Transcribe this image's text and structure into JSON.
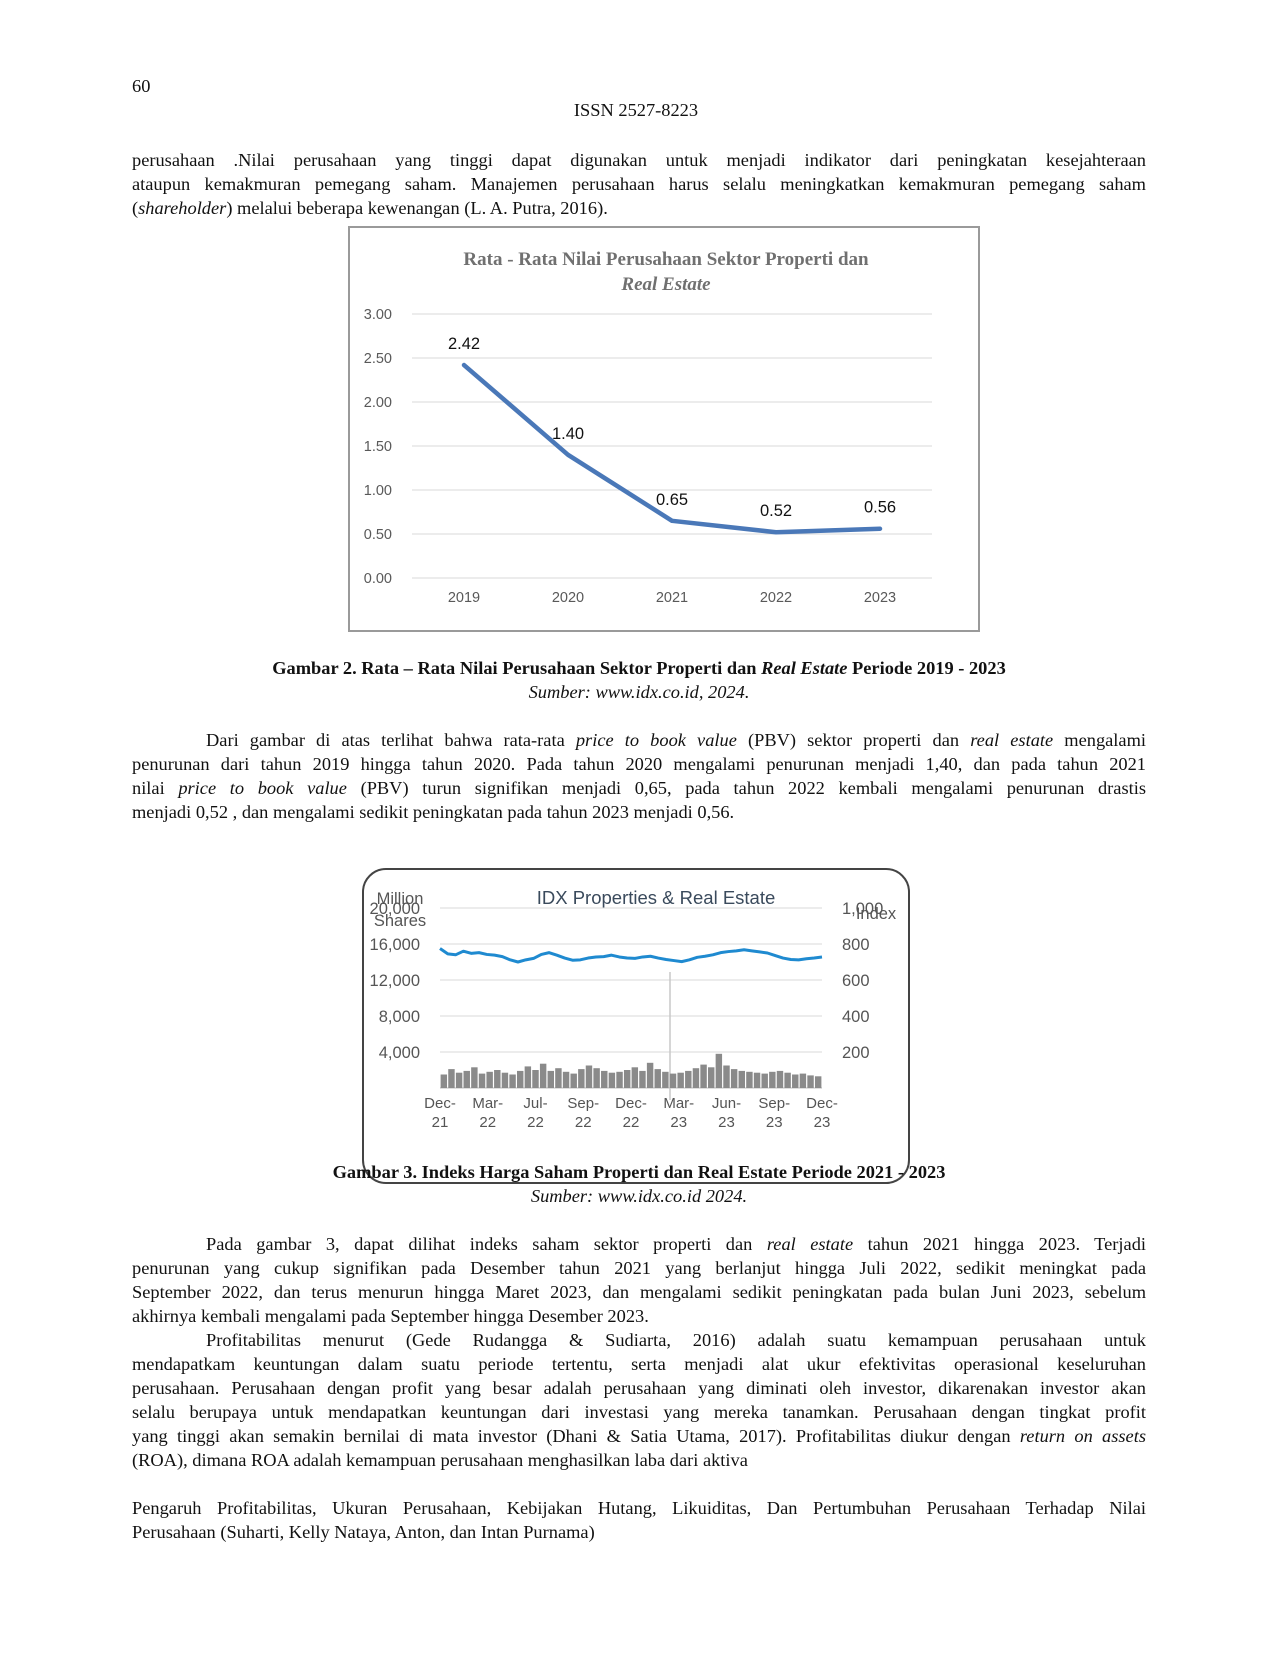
{
  "header": {
    "page_number": "60",
    "issn": "ISSN 2527-8223"
  },
  "intro_paragraph": {
    "line1": "perusahaan .Nilai perusahaan yang tinggi dapat digunakan untuk menjadi indikator dari peningkatan kesejahteraan",
    "line2": "ataupun kemakmuran pemegang saham. Manajemen perusahaan harus selalu meningkatkan kemakmuran pemegang saham",
    "line3_open": "(",
    "line3_italic": "shareholder",
    "line3_rest": ") melalui beberapa kewenangan (L. A. Putra, 2016)."
  },
  "figure2": {
    "caption_bold_1": "Gambar 2. Rata – Rata Nilai Perusahaan Sektor Properti dan ",
    "caption_bold_italic": "Real Estate",
    "caption_bold_2": " Periode 2019 - 2023",
    "source": "Sumber: www.idx.co.id, 2024."
  },
  "chart_data": [
    {
      "type": "line",
      "title_line1": "Rata - Rata Nilai Perusahaan Sektor Properti dan",
      "title_line2": "Real Estate",
      "categories": [
        "2019",
        "2020",
        "2021",
        "2022",
        "2023"
      ],
      "values": [
        2.42,
        1.4,
        0.65,
        0.52,
        0.56
      ],
      "data_labels": [
        "2.42",
        "1.40",
        "0.65",
        "0.52",
        "0.56"
      ],
      "y_ticks": [
        "0.00",
        "0.50",
        "1.00",
        "1.50",
        "2.00",
        "2.50",
        "3.00"
      ],
      "ylim": [
        0,
        3
      ],
      "grid": true,
      "color": "#4a78b8"
    },
    {
      "type": "line",
      "title": "IDX Properties & Real Estate",
      "left_axis_label_1": "Million",
      "left_axis_label_2": "Shares",
      "right_axis_label": "Index",
      "left_ticks": [
        "20,000",
        "16,000",
        "12,000",
        "8,000",
        "4,000"
      ],
      "right_ticks": [
        "1,000",
        "800",
        "600",
        "400",
        "200"
      ],
      "x_ticks": [
        [
          "Dec-",
          "21"
        ],
        [
          "Mar-",
          "22"
        ],
        [
          "Jul-",
          "22"
        ],
        [
          "Sep-",
          "22"
        ],
        [
          "Dec-",
          "22"
        ],
        [
          "Mar-",
          "23"
        ],
        [
          "Jun-",
          "23"
        ],
        [
          "Sep-",
          "23"
        ],
        [
          "Dec-",
          "23"
        ]
      ],
      "index_ylim": [
        0,
        1000
      ],
      "volume_ylim": [
        0,
        20000
      ],
      "index_series": [
        775,
        745,
        740,
        760,
        748,
        752,
        742,
        738,
        730,
        712,
        700,
        712,
        720,
        742,
        752,
        738,
        722,
        710,
        712,
        722,
        728,
        730,
        738,
        728,
        722,
        720,
        728,
        732,
        722,
        714,
        708,
        702,
        712,
        726,
        732,
        740,
        752,
        758,
        762,
        768,
        762,
        756,
        750,
        736,
        722,
        714,
        712,
        718,
        722,
        728
      ],
      "volume_series": [
        1500,
        2100,
        1700,
        1900,
        2300,
        1600,
        1800,
        2000,
        1700,
        1500,
        1900,
        2400,
        2000,
        2700,
        1900,
        2200,
        1800,
        1600,
        2100,
        2500,
        2200,
        1900,
        1700,
        1800,
        2000,
        2300,
        1900,
        2800,
        2100,
        1800,
        1600,
        1700,
        1900,
        2200,
        2600,
        2300,
        3800,
        2500,
        2100,
        1900,
        1800,
        1700,
        1600,
        1800,
        1900,
        1700,
        1500,
        1600,
        1400,
        1300
      ],
      "index_color": "#1f8ad0",
      "volume_color": "#8a8a8a"
    }
  ],
  "paragraph2": {
    "line1_a": "Dari gambar di atas terlihat bahwa rata-rata ",
    "line1_i1": "price to book value",
    "line1_b": " (PBV)  sektor properti dan ",
    "line1_i2": "real estate",
    "line1_c": " mengalami",
    "line2": "penurunan dari tahun 2019 hingga tahun 2020. Pada tahun 2020 mengalami penurunan menjadi 1,40, dan pada tahun 2021",
    "line3_a": "nilai ",
    "line3_i": "price to book value",
    "line3_b": " (PBV) turun signifikan menjadi 0,65, pada tahun 2022 kembali mengalami penurunan drastis",
    "line4": "menjadi 0,52 , dan mengalami sedikit peningkatan pada tahun 2023 menjadi 0,56."
  },
  "figure3": {
    "caption": "Gambar 3. Indeks Harga Saham Properti dan Real Estate Periode 2021 - 2023",
    "source": "Sumber: www.idx.co.id 2024."
  },
  "paragraph3": {
    "line1_a": "Pada gambar 3, dapat dilihat indeks  saham  sektor properti dan ",
    "line1_i": "real estate",
    "line1_b": " tahun 2021 hingga 2023. Terjadi",
    "line2": "penurunan yang cukup signifikan pada Desember tahun 2021 yang berlanjut hingga Juli 2022, sedikit meningkat pada",
    "line3": "September 2022, dan terus menurun hingga Maret 2023, dan mengalami sedikit peningkatan pada bulan Juni 2023, sebelum",
    "line4": "akhirnya kembali mengalami pada September hingga Desember 2023."
  },
  "paragraph4": {
    "line1": "Profitabilitas menurut (Gede Rudangga & Sudiarta, 2016) adalah suatu kemampuan perusahaan untuk",
    "line2": "mendapatkam keuntungan dalam suatu periode tertentu, serta menjadi alat ukur efektivitas operasional keseluruhan",
    "line3": "perusahaan. Perusahaan dengan profit yang besar adalah perusahaan yang diminati oleh investor, dikarenakan investor akan",
    "line4": "selalu berupaya untuk mendapatkan keuntungan dari investasi yang mereka tanamkan. Perusahaan dengan tingkat profit",
    "line5_a": "yang tinggi akan semakin bernilai di mata investor (Dhani & Satia Utama, 2017). Profitabilitas diukur dengan ",
    "line5_i": "return on assets",
    "line6": "(ROA), dimana ROA adalah kemampuan perusahaan menghasilkan laba dari aktiva"
  },
  "footer": {
    "line1": "Pengaruh Profitabilitas, Ukuran Perusahaan, Kebijakan Hutang, Likuiditas, Dan Pertumbuhan Perusahaan Terhadap Nilai",
    "line2": "Perusahaan (Suharti, Kelly Nataya, Anton, dan Intan Purnama)"
  }
}
